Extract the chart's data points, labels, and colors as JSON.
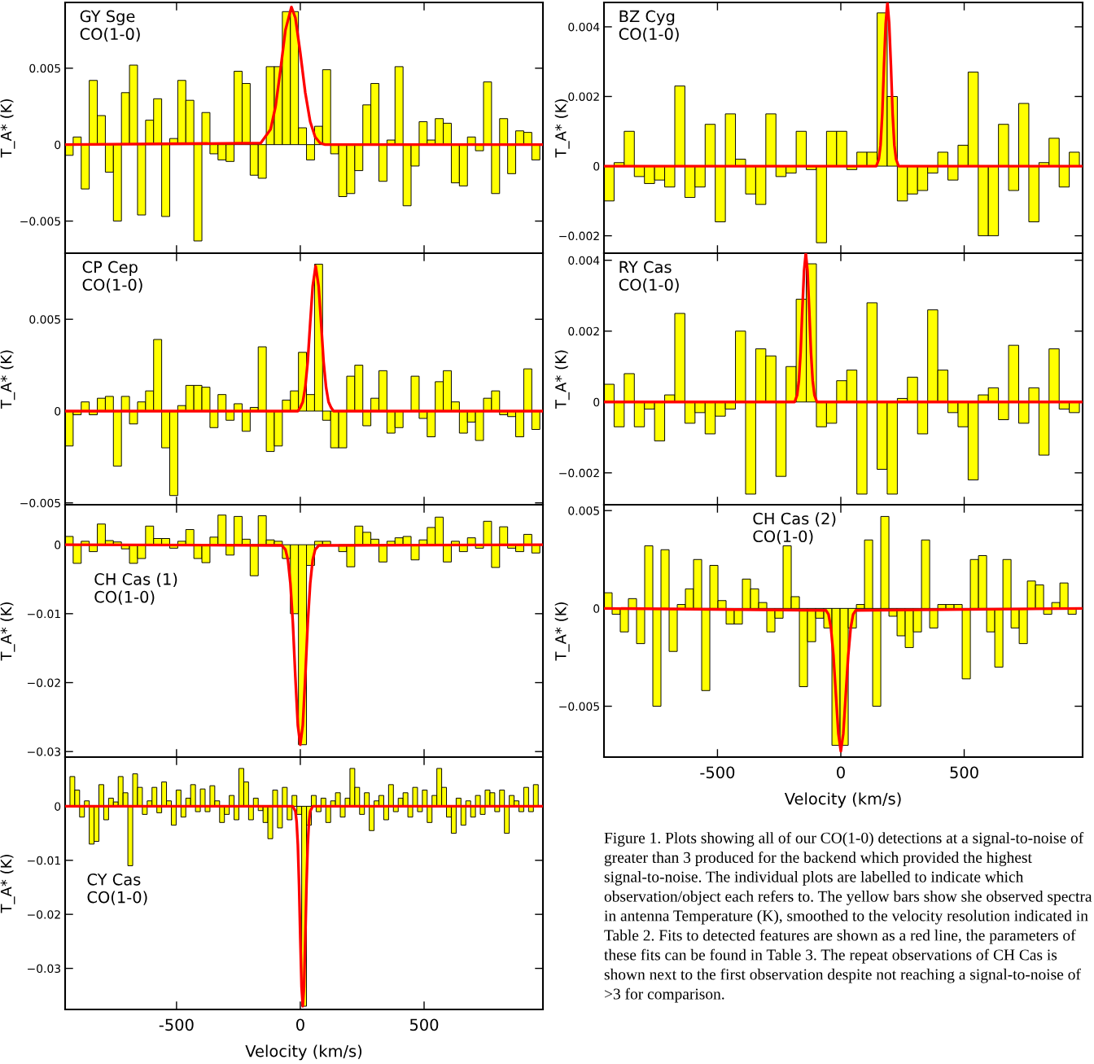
{
  "chart_data": [
    {
      "type": "histogram",
      "annotations": [
        "GY Sge\nCO(1-0)"
      ],
      "ylabel": "T_A* (K)",
      "xlim": [
        -950,
        980
      ],
      "ylim": [
        -0.0071,
        0.0093
      ],
      "xticks": [
        -500,
        0,
        500
      ],
      "yticks": [
        {
          "value": -0.005,
          "label": "−0.005"
        },
        0,
        0.005
      ],
      "tick_labels": "y",
      "series": [
        {
          "type": "histogram",
          "color": "#ffff00",
          "bins": [
            -950,
            -917.5,
            -885,
            -852.5,
            -820,
            -787.5,
            -755,
            -722.5,
            -690,
            -657.5,
            -625,
            -592.5,
            -560,
            -527.5,
            -495,
            -462.5,
            -430,
            -397.5,
            -365,
            -332.5,
            -300,
            -267.5,
            -235,
            -202.5,
            -170,
            -137.5,
            -105,
            -72.5,
            -40,
            -7.5,
            25,
            57.5,
            90,
            122.5,
            155,
            187.5,
            220,
            252.5,
            285,
            317.5,
            350,
            382.5,
            415,
            447.5,
            480,
            512.5,
            545,
            577.5,
            610,
            642.5,
            675,
            707.5,
            740,
            772.5,
            805,
            837.5,
            870,
            902.5,
            935,
            967.5
          ],
          "values": [
            -0.0007,
            0.0005,
            -0.0029,
            0.0042,
            0.0019,
            -0.0018,
            -0.005,
            0.0034,
            0.0052,
            -0.0046,
            0.0016,
            0.003,
            -0.0047,
            0.0004,
            0.0042,
            0.0029,
            -0.0063,
            0.0021,
            -0.0006,
            -0.001,
            -0.0011,
            0.0048,
            0.004,
            -0.002,
            -0.0022,
            0.0051,
            0.0051,
            0.0087,
            0.0087,
            0.0011,
            -0.001,
            0.0012,
            0.0049,
            -0.0006,
            -0.0034,
            -0.0032,
            -0.0017,
            0.0026,
            0.004,
            -0.0024,
            0.0003,
            0.0051,
            -0.004,
            -0.0014,
            0.0015,
            0.0003,
            0.0017,
            0.0014,
            -0.0025,
            -0.0027,
            0.0005,
            -0.0004,
            0.0041,
            -0.0032,
            0.0017,
            -0.0019,
            0.0009,
            0.0008,
            -0.001
          ]
        },
        {
          "type": "line",
          "color": "#ff0000",
          "x": [
            -950,
            -160,
            -120,
            -100,
            -80,
            -60,
            -36,
            -20,
            0,
            20,
            40,
            60,
            80,
            100,
            980
          ],
          "values": [
            0,
            0.0001,
            0.001,
            0.0025,
            0.0049,
            0.0075,
            0.009,
            0.0083,
            0.006,
            0.0034,
            0.0015,
            0.0005,
            0.0001,
            0,
            0
          ]
        }
      ]
    },
    {
      "type": "histogram",
      "annotations": [
        "CP Cep\nCO(1-0)"
      ],
      "ylabel": "T_A* (K)",
      "xlim": [
        -950,
        980
      ],
      "ylim": [
        -0.0051,
        0.0086
      ],
      "xticks": [
        -500,
        0,
        500
      ],
      "yticks": [
        {
          "value": -0.005,
          "label": "−0.005"
        },
        0,
        0.005
      ],
      "tick_labels": "y",
      "series": [
        {
          "type": "histogram",
          "color": "#ffff00",
          "bins": [
            -950,
            -917.5,
            -885,
            -852.5,
            -820,
            -787.5,
            -755,
            -722.5,
            -690,
            -657.5,
            -625,
            -592.5,
            -560,
            -527.5,
            -495,
            -462.5,
            -430,
            -397.5,
            -365,
            -332.5,
            -300,
            -267.5,
            -235,
            -202.5,
            -170,
            -137.5,
            -105,
            -72.5,
            -40,
            -7.5,
            25,
            57.5,
            90,
            122.5,
            155,
            187.5,
            220,
            252.5,
            285,
            317.5,
            350,
            382.5,
            415,
            447.5,
            480,
            512.5,
            545,
            577.5,
            610,
            642.5,
            675,
            707.5,
            740,
            772.5,
            805,
            837.5,
            870,
            902.5,
            935,
            967.5
          ],
          "values": [
            -0.0019,
            -0.0002,
            0.0005,
            -0.0002,
            0.0007,
            0.0008,
            -0.003,
            0.0008,
            -0.0007,
            0.0005,
            0.0011,
            0.0039,
            -0.002,
            -0.0046,
            0.0003,
            0.0014,
            0.0014,
            0.0013,
            -0.0009,
            0.0009,
            -0.0005,
            0.0004,
            -0.0011,
            0.0002,
            0.0035,
            -0.0022,
            -0.0019,
            0.0006,
            0.0011,
            0.0032,
            0.0009,
            0.008,
            -0.0005,
            -0.002,
            -0.002,
            0.0019,
            0.0025,
            -0.0008,
            0.0007,
            0.0022,
            -0.0012,
            -0.0009,
            null,
            0.0019,
            -0.0004,
            -0.0014,
            0.0016,
            0.0022,
            0.0005,
            -0.0012,
            -0.0006,
            -0.0016,
            0.0007,
            0.0011,
            -0.0002,
            -0.0003,
            -0.0014,
            0.0023,
            -0.001
          ]
        },
        {
          "type": "line",
          "color": "#ff0000",
          "x": [
            -950,
            -10,
            0,
            10,
            20,
            30,
            40,
            50,
            62,
            74,
            84,
            94,
            104,
            114,
            124,
            134,
            980
          ],
          "values": [
            0,
            0,
            0.0002,
            0.0005,
            0.0013,
            0.0027,
            0.0048,
            0.0068,
            0.0079,
            0.0068,
            0.0048,
            0.0027,
            0.0013,
            0.0005,
            0.0002,
            0,
            0
          ]
        }
      ]
    },
    {
      "type": "histogram",
      "annotations": [
        "CH Cas (1)\nCO(1-0)"
      ],
      "ylabel": "T_A* (K)",
      "xlim": [
        -950,
        980
      ],
      "ylim": [
        -0.0308,
        0.0058
      ],
      "xticks": [
        -500,
        0,
        500
      ],
      "yticks": [
        {
          "value": -0.03,
          "label": "−0.03"
        },
        {
          "value": -0.02,
          "label": "−0.02"
        },
        {
          "value": -0.01,
          "label": "−0.01"
        },
        0
      ],
      "tick_labels": "y",
      "series": [
        {
          "type": "histogram",
          "color": "#ffff00",
          "bins": [
            -950,
            -917.5,
            -885,
            -852.5,
            -820,
            -787.5,
            -755,
            -722.5,
            -690,
            -657.5,
            -625,
            -592.5,
            -560,
            -527.5,
            -495,
            -462.5,
            -430,
            -397.5,
            -365,
            -332.5,
            -300,
            -267.5,
            -235,
            -202.5,
            -170,
            -137.5,
            -105,
            -72.5,
            -40,
            -7.5,
            25,
            57.5,
            90,
            122.5,
            155,
            187.5,
            220,
            252.5,
            285,
            317.5,
            350,
            382.5,
            415,
            447.5,
            480,
            512.5,
            545,
            577.5,
            610,
            642.5,
            675,
            707.5,
            740,
            772.5,
            805,
            837.5,
            870,
            902.5,
            935,
            967.5
          ],
          "values": [
            0.0012,
            -0.0027,
            0.0005,
            -0.001,
            0.003,
            0.0006,
            0.0004,
            -0.0006,
            -0.0027,
            -0.002,
            0.0027,
            0.0009,
            0.0009,
            -0.0005,
            0.0005,
            0.0022,
            -0.002,
            -0.0026,
            0.0011,
            0.0043,
            -0.0015,
            0.0041,
            0.0008,
            -0.0045,
            0.0042,
            0.0007,
            0.0005,
            -0.002,
            -0.01,
            -0.029,
            -0.003,
            0.0005,
            0.0005,
            null,
            -0.001,
            -0.0032,
            0.0027,
            0.0018,
            0.0008,
            -0.0025,
            0.0005,
            0.001,
            0.0012,
            -0.0022,
            0.0007,
            0.0025,
            0.004,
            -0.0025,
            0.0005,
            -0.001,
            0.001,
            -0.0005,
            0.0034,
            -0.0033,
            0.0026,
            -0.0005,
            -0.001,
            0.0015,
            -0.0012
          ]
        },
        {
          "type": "line",
          "color": "#ff0000",
          "x": [
            -950,
            -75,
            -60,
            -50,
            -40,
            -30,
            -20,
            -10,
            0,
            10,
            20,
            30,
            40,
            50,
            60,
            75,
            980
          ],
          "values": [
            0,
            -0.0001,
            -0.0007,
            -0.0022,
            -0.0056,
            -0.0114,
            -0.0192,
            -0.0262,
            -0.029,
            -0.0262,
            -0.0192,
            -0.0114,
            -0.0056,
            -0.0022,
            -0.0007,
            -0.0001,
            0
          ]
        }
      ]
    },
    {
      "type": "histogram",
      "annotations": [
        "CY Cas\nCO(1-0)"
      ],
      "xlabel": "Velocity (km/s)",
      "ylabel": "T_A* (K)",
      "xlim": [
        -950,
        980
      ],
      "ylim": [
        -0.0376,
        0.0091
      ],
      "xticks": [
        -500,
        0,
        500
      ],
      "yticks": [
        {
          "value": -0.03,
          "label": "−0.03"
        },
        {
          "value": -0.02,
          "label": "−0.02"
        },
        {
          "value": -0.01,
          "label": "−0.01"
        },
        0
      ],
      "series": [
        {
          "type": "histogram",
          "color": "#ffff00",
          "bins": [
            -950,
            -930.5,
            -911,
            -891.5,
            -872,
            -852.5,
            -833,
            -813.5,
            -794,
            -774.5,
            -755,
            -735.5,
            -716,
            -696.5,
            -677,
            -657.5,
            -638,
            -618.5,
            -599,
            -579.5,
            -560,
            -540.5,
            -521,
            -501.5,
            -482,
            -462.5,
            -443,
            -423.5,
            -404,
            -384.5,
            -365,
            -345.5,
            -326,
            -306.5,
            -287,
            -267.5,
            -248,
            -228.5,
            -209,
            -189.5,
            -170,
            -150.5,
            -131,
            -111.5,
            -92,
            -72.5,
            -53,
            -33.5,
            -14,
            5.5,
            25,
            44.5,
            64,
            83.5,
            103,
            122.5,
            142,
            161.5,
            181,
            200.5,
            220,
            239.5,
            259,
            278.5,
            298,
            317.5,
            337,
            356.5,
            376,
            395.5,
            415,
            434.5,
            454,
            473.5,
            493,
            512.5,
            532,
            551.5,
            571,
            590.5,
            610,
            629.5,
            649,
            668.5,
            688,
            707.5,
            727,
            746.5,
            766,
            785.5,
            805,
            824.5,
            844,
            863.5,
            883,
            902.5,
            922,
            941.5,
            961
          ],
          "values": [
            null,
            0.0055,
            0.003,
            -0.002,
            0.001,
            -0.007,
            -0.0065,
            0.004,
            -0.0025,
            0.0015,
            0.0008,
            0.0055,
            0.0025,
            -0.011,
            0.006,
            0.0035,
            -0.0015,
            0.001,
            0.0035,
            -0.0012,
            0.0045,
            0.001,
            -0.0035,
            0.003,
            -0.002,
            0.0015,
            0.004,
            -0.001,
            0.0032,
            -0.001,
            0.0038,
            0.001,
            -0.003,
            -0.0015,
            0.002,
            -0.0025,
            0.007,
            0.0045,
            -0.0025,
            0.0015,
            -0.0008,
            -0.003,
            -0.006,
            0.003,
            -0.004,
            0.0035,
            -0.0025,
            0.002,
            -0.0015,
            -0.037,
            -0.0035,
            0.002,
            -0.001,
            0.0015,
            -0.003,
            0.001,
            0.0025,
            -0.002,
            0.0015,
            0.007,
            0.0035,
            -0.0015,
            0.0025,
            -0.0045,
            0.001,
            0.002,
            -0.0025,
            0.004,
            -0.001,
            0.0015,
            0.0025,
            -0.002,
            0.0035,
            -0.001,
            0.003,
            -0.003,
            0.002,
            0.007,
            0.0035,
            -0.002,
            -0.005,
            0.0015,
            -0.0035,
            0.001,
            -0.002,
            0.002,
            -0.0015,
            0.003,
            0.0025,
            -0.001,
            0.003,
            -0.005,
            0.002,
            0.001,
            -0.001,
            0.0035,
            -0.001,
            0.004
          ]
        },
        {
          "type": "line",
          "color": "#ff0000",
          "x": [
            -950,
            -30,
            -20,
            -15,
            -10,
            -5,
            0,
            5,
            10,
            15,
            20,
            25,
            30,
            35,
            40,
            50,
            980
          ],
          "values": [
            0,
            0,
            -0.0009,
            -0.0028,
            -0.0071,
            -0.0146,
            -0.0245,
            -0.0334,
            -0.037,
            -0.0334,
            -0.0245,
            -0.0146,
            -0.0071,
            -0.0028,
            -0.0009,
            0,
            0
          ]
        }
      ]
    },
    {
      "type": "histogram",
      "annotations": [
        "BZ Cyg\nCO(1-0)"
      ],
      "ylabel": "T_A* (K)",
      "xlim": [
        -960,
        980
      ],
      "ylim": [
        -0.0025,
        0.0047
      ],
      "xticks": [
        -500,
        0,
        500
      ],
      "yticks": [
        {
          "value": -0.002,
          "label": "−0.002"
        },
        0,
        0.002,
        0.004
      ],
      "tick_labels": "y",
      "series": [
        {
          "type": "histogram",
          "color": "#ffff00",
          "bins": [
            -960,
            -919,
            -878,
            -837,
            -796,
            -755,
            -714,
            -673,
            -632,
            -591,
            -550,
            -509,
            -468,
            -427,
            -386,
            -345,
            -304,
            -263,
            -222,
            -181,
            -140,
            -99,
            -58,
            -17,
            24,
            65,
            106,
            147,
            188,
            229,
            270,
            311,
            352,
            393,
            434,
            475,
            516,
            557,
            598,
            639,
            680,
            721,
            762,
            803,
            844,
            885,
            926,
            967
          ],
          "values": [
            -0.001,
            0.0001,
            0.001,
            -0.0003,
            -0.0005,
            -0.0004,
            -0.0006,
            0.0023,
            -0.0009,
            -0.0006,
            0.0012,
            -0.0016,
            0.0015,
            0.0002,
            -0.0008,
            -0.0011,
            0.0015,
            -0.0003,
            -0.0002,
            0.001,
            -0.0001,
            -0.0022,
            0.001,
            0.001,
            -0.0001,
            0.0004,
            0.0004,
            0.0044,
            0.002,
            -0.001,
            -0.0008,
            -0.0007,
            -0.0002,
            0.0004,
            -0.0004,
            0.0006,
            0.0027,
            -0.002,
            -0.002,
            0.0012,
            -0.0007,
            0.0018,
            -0.0016,
            0.0001,
            0.0008,
            -0.0006,
            0.0004
          ]
        },
        {
          "type": "line",
          "color": "#ff0000",
          "x": [
            -960,
            144,
            154,
            161,
            168,
            175,
            182,
            189,
            196,
            203,
            210,
            217,
            224,
            234,
            980
          ],
          "values": [
            0,
            0,
            0.0002,
            0.0006,
            0.0015,
            0.0029,
            0.0041,
            0.0047,
            0.0041,
            0.0029,
            0.0015,
            0.0006,
            0.0002,
            0,
            0
          ]
        }
      ]
    },
    {
      "type": "histogram",
      "annotations": [
        "RY Cas\nCO(1-0)"
      ],
      "ylabel": "T_A* (K)",
      "xlim": [
        -960,
        980
      ],
      "ylim": [
        -0.0029,
        0.0042
      ],
      "xticks": [
        -500,
        0,
        500
      ],
      "yticks": [
        {
          "value": -0.002,
          "label": "−0.002"
        },
        0,
        0.002,
        0.004
      ],
      "tick_labels": "y",
      "series": [
        {
          "type": "histogram",
          "color": "#ffff00",
          "bins": [
            -960,
            -919,
            -878,
            -837,
            -796,
            -755,
            -714,
            -673,
            -632,
            -591,
            -550,
            -509,
            -468,
            -427,
            -386,
            -345,
            -304,
            -263,
            -222,
            -181,
            -140,
            -99,
            -58,
            -17,
            24,
            65,
            106,
            147,
            188,
            229,
            270,
            311,
            352,
            393,
            434,
            475,
            516,
            557,
            598,
            639,
            680,
            721,
            762,
            803,
            844,
            885,
            926,
            967
          ],
          "values": [
            0.0005,
            -0.0007,
            0.0008,
            -0.0007,
            -0.0002,
            -0.0011,
            0.0002,
            0.0025,
            -0.0006,
            -0.0003,
            -0.0009,
            -0.0004,
            -0.0002,
            0.002,
            -0.0026,
            0.0015,
            0.0013,
            -0.0021,
            0.001,
            0.0029,
            0.0039,
            -0.0007,
            -0.0006,
            0.0006,
            0.0009,
            -0.0026,
            0.0028,
            -0.0019,
            -0.0026,
            0.0001,
            0.0007,
            -0.0009,
            0.0026,
            0.0009,
            -0.0003,
            -0.0007,
            -0.0022,
            0.0002,
            0.0004,
            -0.0005,
            0.0016,
            -0.0006,
            0.0004,
            -0.0015,
            0.0015,
            -0.0002,
            -0.0003
          ]
        },
        {
          "type": "line",
          "color": "#ff0000",
          "x": [
            -960,
            -187,
            -177,
            -170,
            -163,
            -156,
            -149,
            -142,
            -135,
            -128,
            -121,
            -114,
            -107,
            -97,
            980
          ],
          "values": [
            0,
            0,
            0.0002,
            0.0006,
            0.0014,
            0.0026,
            0.0037,
            0.0042,
            0.0037,
            0.0026,
            0.0014,
            0.0006,
            0.0002,
            0,
            0
          ]
        }
      ]
    },
    {
      "type": "histogram",
      "annotations": [
        "CH Cas (2)\nCO(1-0)",
        "Figure 1. Plots showing all of our CO(1-0) detections at a signal-to-noise of greater than 3 produced for the backend which provided the highest signal-to-noise. The individual plots are labelled to indicate which observation/object each refers to. The yellow bars show she observed spectra in antenna Temperature (K), smoothed to the velocity resolution indicated in Table 2. Fits to detected features are shown as a red line, the parameters of these fits can be found in Table 3. The repeat observations of CH Cas is shown next to the first observation despite not reaching a signal-to-noise of >3 for comparison."
      ],
      "xlabel": "Velocity (km/s)",
      "ylabel": "T_A* (K)",
      "xlim": [
        -960,
        980
      ],
      "ylim": [
        -0.0076,
        0.0053
      ],
      "xticks": [
        -500,
        0,
        500
      ],
      "yticks": [
        {
          "value": -0.005,
          "label": "−0.005"
        },
        0,
        0.005
      ],
      "series": [
        {
          "type": "histogram",
          "color": "#ffff00",
          "bins": [
            -960,
            -927,
            -894,
            -861,
            -828,
            -795,
            -762,
            -729,
            -696,
            -663,
            -630,
            -597,
            -564,
            -531,
            -498,
            -465,
            -432,
            -399,
            -366,
            -333,
            -300,
            -267,
            -234,
            -201,
            -168,
            -135,
            -102,
            -69,
            -36,
            -3,
            30,
            63,
            96,
            129,
            162,
            195,
            228,
            261,
            294,
            327,
            360,
            393,
            426,
            459,
            492,
            525,
            558,
            591,
            624,
            657,
            690,
            723,
            756,
            789,
            822,
            855,
            888,
            921,
            954
          ],
          "values": [
            0.0008,
            -0.0003,
            -0.0012,
            0.0005,
            -0.0018,
            0.0032,
            -0.005,
            0.003,
            -0.0022,
            0.0002,
            0.001,
            0.0025,
            -0.0042,
            0.0022,
            0.0004,
            -0.0008,
            -0.0008,
            0.0015,
            0.001,
            0.0003,
            -0.0012,
            -0.0005,
            0.0032,
            0.0006,
            -0.004,
            -0.0017,
            -0.0005,
            -0.001,
            -0.007,
            -0.007,
            -0.001,
            0.0002,
            0.0035,
            -0.005,
            0.0047,
            -0.0004,
            -0.0014,
            -0.002,
            -0.0012,
            0.0035,
            -0.001,
            0.0002,
            0.0002,
            0.0002,
            -0.0036,
            0.0025,
            0.0027,
            -0.0012,
            -0.003,
            0.0025,
            -0.001,
            -0.0018,
            0.0014,
            0.0012,
            -0.0003,
            0.0003,
            0.0013,
            -0.0003
          ]
        },
        {
          "type": "line",
          "color": "#ff0000",
          "x": [
            -960,
            -60,
            -50,
            -40,
            -30,
            -20,
            -10,
            0,
            10,
            20,
            30,
            40,
            50,
            60,
            980
          ],
          "values": [
            0,
            -0.0001,
            -0.0003,
            -0.001,
            -0.0024,
            -0.0044,
            -0.0064,
            -0.0073,
            -0.0064,
            -0.0044,
            -0.0024,
            -0.001,
            -0.0003,
            -0.0001,
            0
          ]
        }
      ]
    }
  ]
}
